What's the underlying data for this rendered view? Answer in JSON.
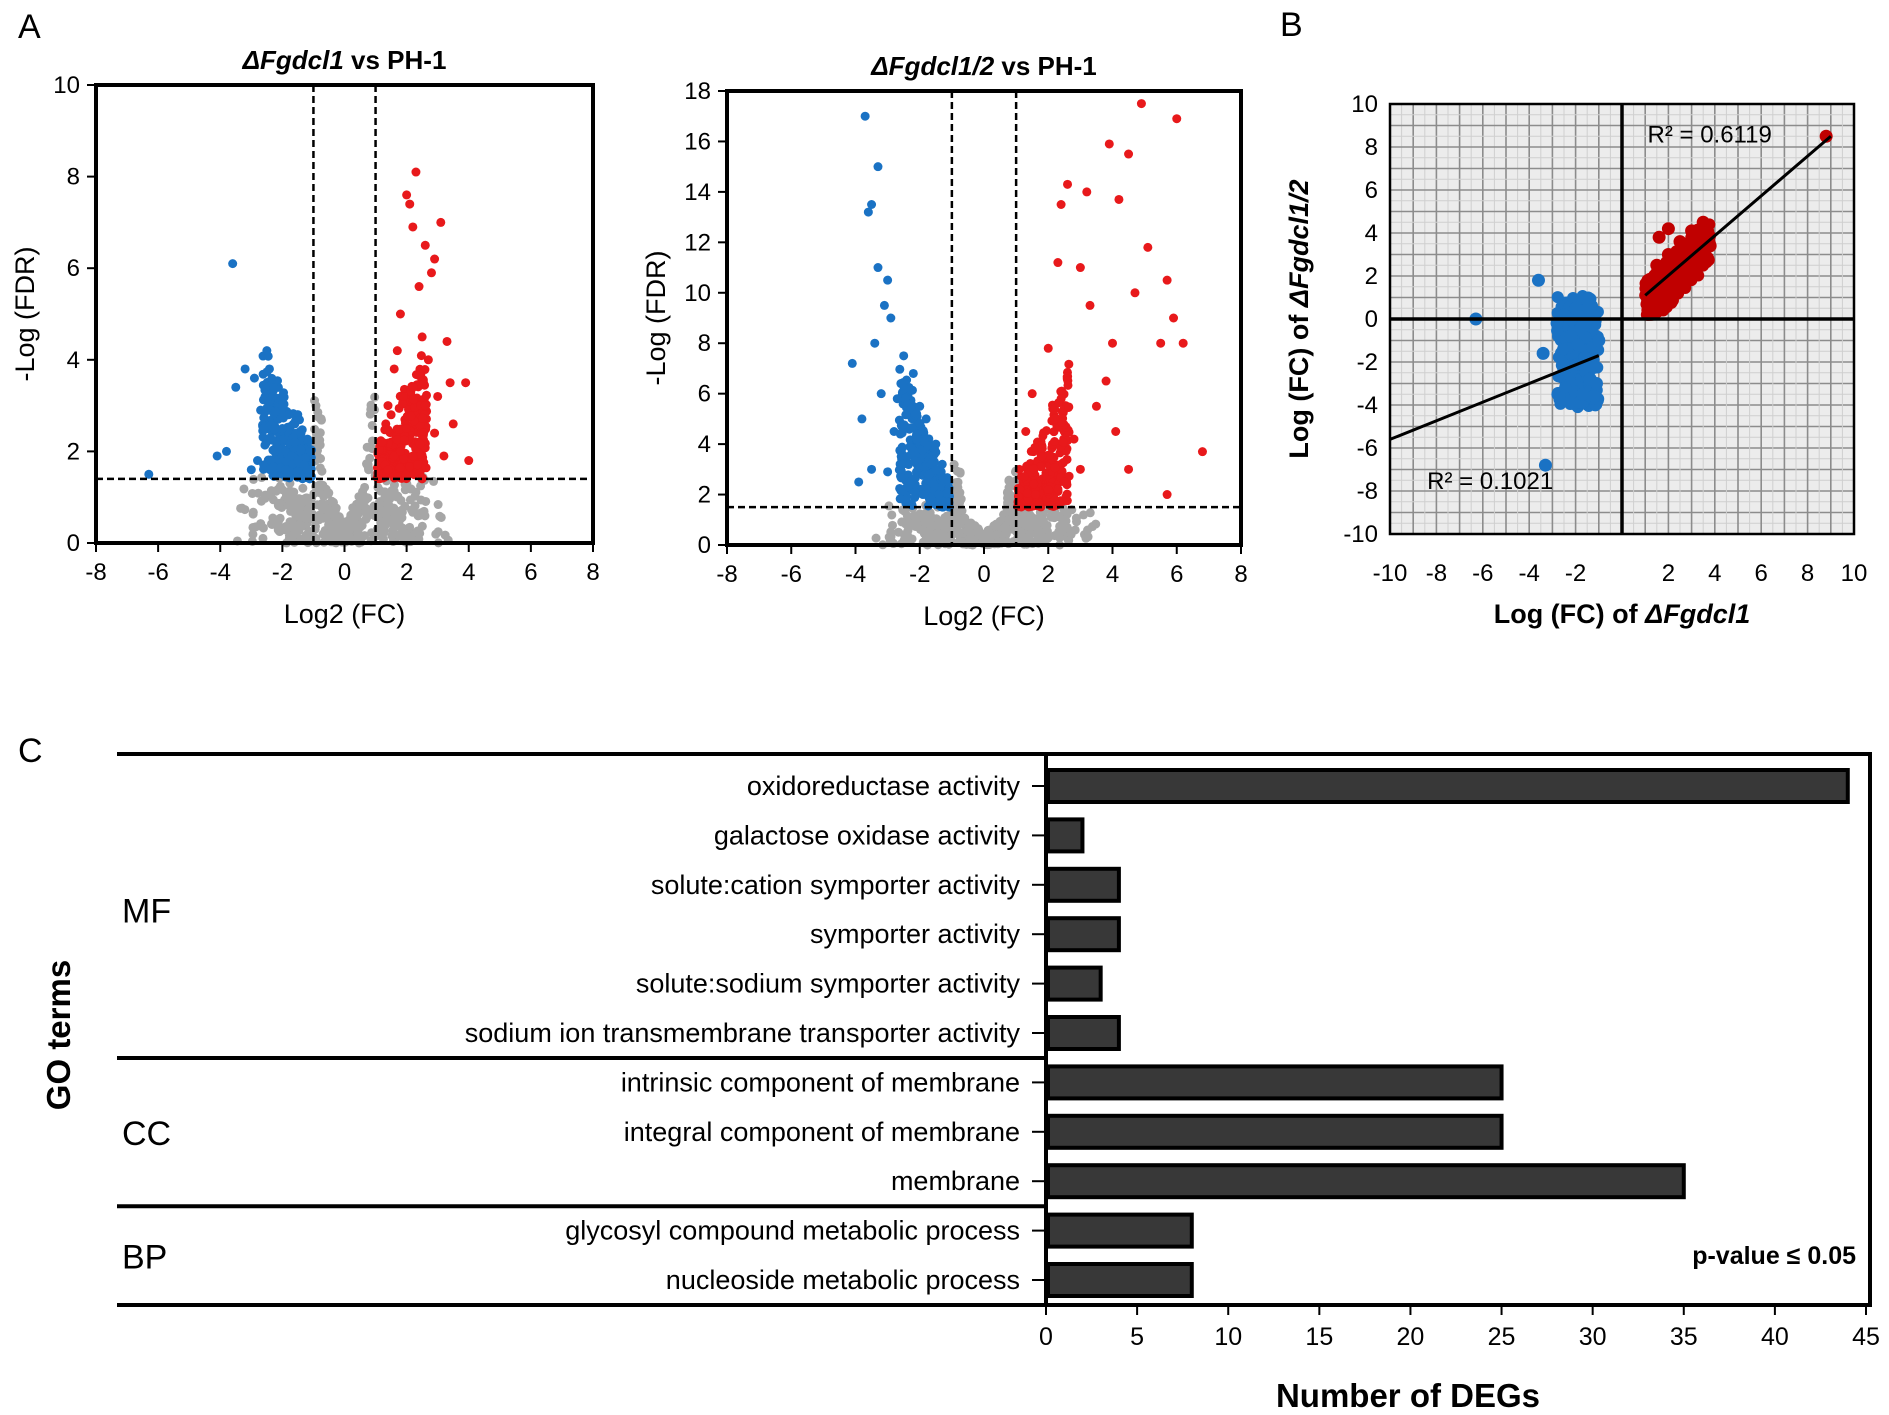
{
  "figure": {
    "panel_labels": [
      "A",
      "B",
      "C"
    ]
  },
  "chart_data": [
    {
      "id": "volcano1",
      "type": "scatter",
      "title_italic": "ΔFgdcl1",
      "title_rest": " vs PH-1",
      "xlabel": "Log2 (FC)",
      "ylabel": "-Log (FDR)",
      "xlim": [
        -8,
        8
      ],
      "ylim": [
        0,
        10
      ],
      "xticks": [
        -8,
        -6,
        -4,
        -2,
        0,
        2,
        4,
        6,
        8
      ],
      "yticks": [
        0,
        2,
        4,
        6,
        8,
        10
      ],
      "thresholds": {
        "fc": [
          -1,
          1
        ],
        "fdr": 1.4
      },
      "series": [
        {
          "name": "down",
          "color": "#1a72c4",
          "points": [
            [
              -3.6,
              6.1
            ],
            [
              -2.5,
              4.2
            ],
            [
              -2.9,
              3.6
            ],
            [
              -3.2,
              3.8
            ],
            [
              -3.5,
              3.4
            ],
            [
              -4.1,
              1.9
            ],
            [
              -6.3,
              1.5
            ],
            [
              -2.3,
              3.2
            ],
            [
              -2.0,
              3.0
            ],
            [
              -1.8,
              2.8
            ],
            [
              -1.6,
              2.6
            ],
            [
              -1.4,
              2.4
            ],
            [
              -2.6,
              2.5
            ],
            [
              -2.2,
              2.2
            ],
            [
              -1.9,
              2.0
            ],
            [
              -1.7,
              1.9
            ],
            [
              -1.5,
              1.8
            ],
            [
              -1.3,
              1.7
            ],
            [
              -2.8,
              1.8
            ],
            [
              -3.0,
              1.6
            ],
            [
              -2.4,
              1.6
            ],
            [
              -1.2,
              1.6
            ],
            [
              -1.1,
              2.0
            ],
            [
              -1.6,
              2.2
            ],
            [
              -2.0,
              2.5
            ],
            [
              -2.7,
              2.9
            ],
            [
              -1.9,
              1.6
            ],
            [
              -3.8,
              2.0
            ]
          ]
        },
        {
          "name": "up",
          "color": "#e8191b",
          "points": [
            [
              2.3,
              8.1
            ],
            [
              2.0,
              7.6
            ],
            [
              2.1,
              7.4
            ],
            [
              2.2,
              6.9
            ],
            [
              2.6,
              6.5
            ],
            [
              3.1,
              7.0
            ],
            [
              2.8,
              5.9
            ],
            [
              3.4,
              3.5
            ],
            [
              3.9,
              3.5
            ],
            [
              4.0,
              1.8
            ],
            [
              3.5,
              2.6
            ],
            [
              3.0,
              3.2
            ],
            [
              2.5,
              4.5
            ],
            [
              1.8,
              5.0
            ],
            [
              2.4,
              5.6
            ],
            [
              1.6,
              3.8
            ],
            [
              1.4,
              3.0
            ],
            [
              1.2,
              2.2
            ],
            [
              1.3,
              1.7
            ],
            [
              1.5,
              2.8
            ],
            [
              1.7,
              4.2
            ],
            [
              1.9,
              3.2
            ],
            [
              2.0,
              2.5
            ],
            [
              2.2,
              1.9
            ],
            [
              2.6,
              3.0
            ],
            [
              2.9,
              2.4
            ],
            [
              3.2,
              1.9
            ],
            [
              1.1,
              1.5
            ],
            [
              1.6,
              1.9
            ],
            [
              2.7,
              4.0
            ],
            [
              3.3,
              4.4
            ],
            [
              2.4,
              3.7
            ],
            [
              1.8,
              2.0
            ],
            [
              1.4,
              1.6
            ],
            [
              2.9,
              6.2
            ]
          ]
        }
      ],
      "ns_color": "#a6a6a6"
    },
    {
      "id": "volcano2",
      "type": "scatter",
      "title_italic": "ΔFgdcl1/2",
      "title_rest": " vs PH-1",
      "xlabel": "Log2 (FC)",
      "ylabel": "-Log (FDR)",
      "xlim": [
        -8,
        8
      ],
      "ylim": [
        0,
        18
      ],
      "xticks": [
        -8,
        -6,
        -4,
        -2,
        0,
        2,
        4,
        6,
        8
      ],
      "yticks": [
        0,
        2,
        4,
        6,
        8,
        10,
        12,
        14,
        16,
        18
      ],
      "thresholds": {
        "fc": [
          -1,
          1
        ],
        "fdr": 1.5
      },
      "series": [
        {
          "name": "down",
          "color": "#1a72c4",
          "points": [
            [
              -3.7,
              17.0
            ],
            [
              -3.3,
              15.0
            ],
            [
              -3.5,
              13.5
            ],
            [
              -3.6,
              13.2
            ],
            [
              -3.3,
              11.0
            ],
            [
              -3.0,
              10.5
            ],
            [
              -3.1,
              9.5
            ],
            [
              -2.9,
              9.0
            ],
            [
              -3.4,
              8.0
            ],
            [
              -4.1,
              7.2
            ],
            [
              -3.8,
              5.0
            ],
            [
              -3.2,
              6.0
            ],
            [
              -2.5,
              7.5
            ],
            [
              -2.2,
              6.8
            ],
            [
              -2.0,
              5.5
            ],
            [
              -1.8,
              5.0
            ],
            [
              -1.5,
              4.0
            ],
            [
              -1.3,
              3.2
            ],
            [
              -1.1,
              2.5
            ],
            [
              -2.8,
              4.5
            ],
            [
              -3.5,
              3.0
            ],
            [
              -3.9,
              2.5
            ],
            [
              -2.4,
              3.5
            ],
            [
              -1.7,
              2.8
            ],
            [
              -2.6,
              2.2
            ],
            [
              -1.9,
              2.0
            ],
            [
              -3.0,
              2.9
            ],
            [
              -2.1,
              4.2
            ],
            [
              -1.4,
              2.0
            ],
            [
              -2.7,
              5.8
            ]
          ]
        },
        {
          "name": "up",
          "color": "#e8191b",
          "points": [
            [
              4.9,
              17.5
            ],
            [
              6.0,
              16.9
            ],
            [
              3.9,
              15.9
            ],
            [
              4.5,
              15.5
            ],
            [
              2.6,
              14.3
            ],
            [
              3.2,
              14.0
            ],
            [
              4.2,
              13.7
            ],
            [
              2.4,
              13.5
            ],
            [
              5.1,
              11.8
            ],
            [
              2.3,
              11.2
            ],
            [
              3.0,
              11.0
            ],
            [
              5.7,
              10.5
            ],
            [
              4.7,
              10.0
            ],
            [
              5.9,
              9.0
            ],
            [
              3.3,
              9.5
            ],
            [
              4.0,
              8.0
            ],
            [
              5.5,
              8.0
            ],
            [
              6.2,
              8.0
            ],
            [
              2.0,
              7.8
            ],
            [
              1.5,
              6.0
            ],
            [
              1.3,
              4.5
            ],
            [
              1.1,
              3.0
            ],
            [
              1.8,
              3.5
            ],
            [
              2.2,
              5.0
            ],
            [
              2.8,
              4.2
            ],
            [
              3.5,
              5.5
            ],
            [
              4.5,
              3.0
            ],
            [
              5.7,
              2.0
            ],
            [
              6.8,
              3.7
            ],
            [
              2.5,
              2.5
            ],
            [
              3.8,
              6.5
            ],
            [
              1.6,
              2.0
            ],
            [
              3.0,
              3.0
            ],
            [
              4.1,
              4.5
            ],
            [
              2.0,
              2.2
            ]
          ]
        }
      ],
      "ns_color": "#a6a6a6"
    },
    {
      "id": "correlation",
      "type": "scatter",
      "xlabel_rest": "Log (FC) of ",
      "xlabel_italic": "ΔFgdcl1",
      "ylabel_rest": "Log (FC) of ",
      "ylabel_italic": "ΔFgdcl1/2",
      "xlim": [
        -10,
        10
      ],
      "ylim": [
        -10,
        10
      ],
      "xticks": [
        -10,
        -8,
        -6,
        -4,
        -2,
        2,
        4,
        6,
        8,
        10
      ],
      "yticks": [
        -10,
        -8,
        -6,
        -4,
        -2,
        0,
        2,
        4,
        6,
        8,
        10
      ],
      "series": [
        {
          "name": "down",
          "color": "#1a72c4",
          "points": [
            [
              -6.3,
              0.0
            ],
            [
              -3.6,
              1.8
            ],
            [
              -3.4,
              -1.6
            ],
            [
              -3.3,
              -6.8
            ],
            [
              -2.5,
              0.2
            ],
            [
              -2.0,
              0.5
            ],
            [
              -1.8,
              -0.5
            ],
            [
              -1.6,
              -1.8
            ],
            [
              -1.4,
              -2.8
            ],
            [
              -1.2,
              -3.6
            ],
            [
              -1.0,
              -1.0
            ],
            [
              -1.5,
              0.9
            ],
            [
              -2.2,
              -0.8
            ],
            [
              -1.3,
              -2.2
            ],
            [
              -1.1,
              -3.0
            ],
            [
              -1.7,
              -3.5
            ],
            [
              -2.8,
              -0.2
            ],
            [
              -1.9,
              -1.2
            ]
          ],
          "trend": [
            [
              -10,
              -5.6
            ],
            [
              -1,
              -1.7
            ]
          ],
          "r2": "R² = 0.1021"
        },
        {
          "name": "up",
          "color": "#c00000",
          "points": [
            [
              8.8,
              8.5
            ],
            [
              3.5,
              4.5
            ],
            [
              3.0,
              4.1
            ],
            [
              2.5,
              3.6
            ],
            [
              2.0,
              3.0
            ],
            [
              1.5,
              2.5
            ],
            [
              1.2,
              1.8
            ],
            [
              1.1,
              1.1
            ],
            [
              1.4,
              0.8
            ],
            [
              2.2,
              2.0
            ],
            [
              2.8,
              2.6
            ],
            [
              1.8,
              1.4
            ],
            [
              3.2,
              3.2
            ],
            [
              2.4,
              1.2
            ],
            [
              1.6,
              3.8
            ],
            [
              2.0,
              4.2
            ],
            [
              3.8,
              3.4
            ],
            [
              1.3,
              0.4
            ]
          ],
          "trend": [
            [
              1.0,
              1.1
            ],
            [
              9.0,
              8.5
            ]
          ],
          "r2": "R² = 0.6119"
        }
      ]
    },
    {
      "id": "go_bar",
      "type": "bar",
      "orientation": "horizontal",
      "categories": [
        "oxidoreductase activity",
        "galactose oxidase activity",
        "solute:cation symporter activity",
        "symporter activity",
        "solute:sodium symporter activity",
        "sodium ion transmembrane transporter activity",
        "intrinsic component of membrane",
        "integral component of membrane",
        "membrane",
        "glycosyl compound metabolic process",
        "nucleoside metabolic process"
      ],
      "values": [
        44,
        2,
        4,
        4,
        3,
        4,
        25,
        25,
        35,
        8,
        8
      ],
      "groups": [
        {
          "name": "MF",
          "start": 0,
          "end": 5
        },
        {
          "name": "CC",
          "start": 6,
          "end": 8
        },
        {
          "name": "BP",
          "start": 9,
          "end": 10
        }
      ],
      "xlabel": "Number of DEGs",
      "ylabel": "GO terms",
      "xlim": [
        0,
        45
      ],
      "xticks": [
        0,
        5,
        10,
        15,
        20,
        25,
        30,
        35,
        40,
        45
      ],
      "annotation": "p-value ≤ 0.05",
      "bar_color": "#383838"
    }
  ]
}
